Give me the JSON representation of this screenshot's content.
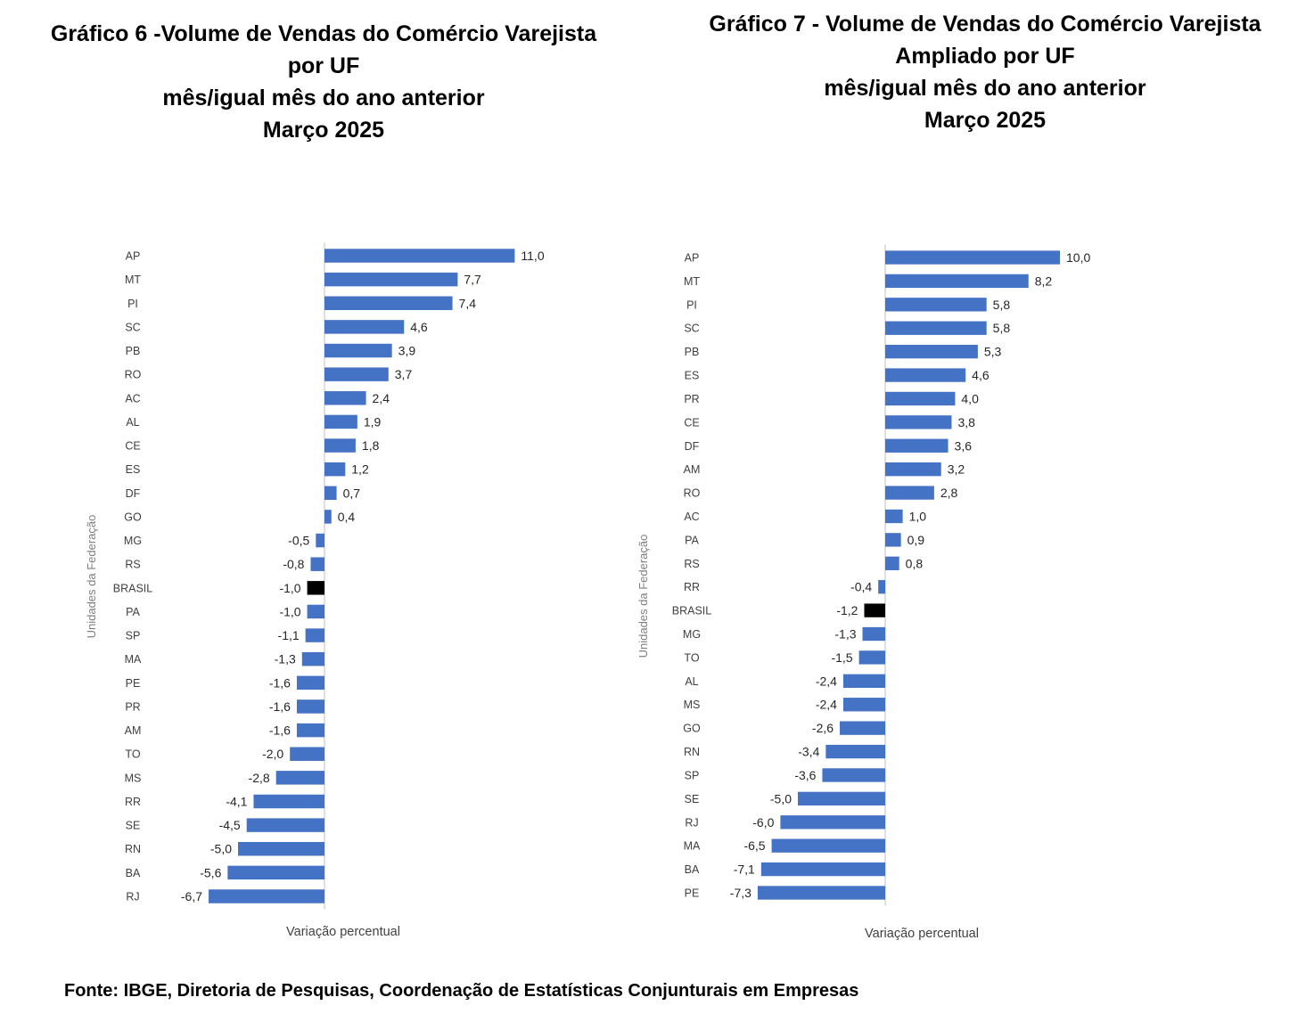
{
  "source_note": "Fonte: IBGE, Diretoria de Pesquisas, Coordenação de Estatísticas Conjunturais em Empresas",
  "colors": {
    "bar": "#4472C4",
    "highlight": "#000000",
    "axis": "#BFBFBF",
    "text": "#404040"
  },
  "chart_data": [
    {
      "type": "bar",
      "orientation": "horizontal",
      "title_lines": [
        "Gráfico 6 -Volume de Vendas do Comércio Varejista",
        "por UF",
        "mês/igual mês do ano anterior",
        "Março 2025"
      ],
      "xlabel": "Variação percentual",
      "ylabel": "Unidades da Federação",
      "highlight_category": "BRASIL",
      "categories": [
        "AP",
        "MT",
        "PI",
        "SC",
        "PB",
        "RO",
        "AC",
        "AL",
        "CE",
        "ES",
        "DF",
        "GO",
        "MG",
        "RS",
        "BRASIL",
        "PA",
        "SP",
        "MA",
        "PE",
        "PR",
        "AM",
        "TO",
        "MS",
        "RR",
        "SE",
        "RN",
        "BA",
        "RJ"
      ],
      "values": [
        11.0,
        7.7,
        7.4,
        4.6,
        3.9,
        3.7,
        2.4,
        1.9,
        1.8,
        1.2,
        0.7,
        0.4,
        -0.5,
        -0.8,
        -1.0,
        -1.0,
        -1.1,
        -1.3,
        -1.6,
        -1.6,
        -1.6,
        -2.0,
        -2.8,
        -4.1,
        -4.5,
        -5.0,
        -5.6,
        -6.7
      ],
      "value_labels": [
        "11,0",
        "7,7",
        "7,4",
        "4,6",
        "3,9",
        "3,7",
        "2,4",
        "1,9",
        "1,8",
        "1,2",
        "0,7",
        "0,4",
        "-0,5",
        "-0,8",
        "-1,0",
        "-1,0",
        "-1,1",
        "-1,3",
        "-1,6",
        "-1,6",
        "-1,6",
        "-2,0",
        "-2,8",
        "-4,1",
        "-4,5",
        "-5,0",
        "-5,6",
        "-6,7"
      ]
    },
    {
      "type": "bar",
      "orientation": "horizontal",
      "title_lines": [
        "Gráfico 7 - Volume de Vendas do Comércio Varejista",
        "Ampliado por UF",
        "mês/igual mês do ano anterior",
        "Março 2025"
      ],
      "xlabel": "Variação percentual",
      "ylabel": "Unidades da Federação",
      "highlight_category": "BRASIL",
      "categories": [
        "AP",
        "MT",
        "PI",
        "SC",
        "PB",
        "ES",
        "PR",
        "CE",
        "DF",
        "AM",
        "RO",
        "AC",
        "PA",
        "RS",
        "RR",
        "BRASIL",
        "MG",
        "TO",
        "AL",
        "MS",
        "GO",
        "RN",
        "SP",
        "SE",
        "RJ",
        "MA",
        "BA",
        "PE"
      ],
      "values": [
        10.0,
        8.2,
        5.8,
        5.8,
        5.3,
        4.6,
        4.0,
        3.8,
        3.6,
        3.2,
        2.8,
        1.0,
        0.9,
        0.8,
        -0.4,
        -1.2,
        -1.3,
        -1.5,
        -2.4,
        -2.4,
        -2.6,
        -3.4,
        -3.6,
        -5.0,
        -6.0,
        -6.5,
        -7.1,
        -7.3
      ],
      "value_labels": [
        "10,0",
        "8,2",
        "5,8",
        "5,8",
        "5,3",
        "4,6",
        "4,0",
        "3,8",
        "3,6",
        "3,2",
        "2,8",
        "1,0",
        "0,9",
        "0,8",
        "-0,4",
        "-1,2",
        "-1,3",
        "-1,5",
        "-2,4",
        "-2,4",
        "-2,6",
        "-3,4",
        "-3,6",
        "-5,0",
        "-6,0",
        "-6,5",
        "-7,1",
        "-7,3"
      ]
    }
  ]
}
